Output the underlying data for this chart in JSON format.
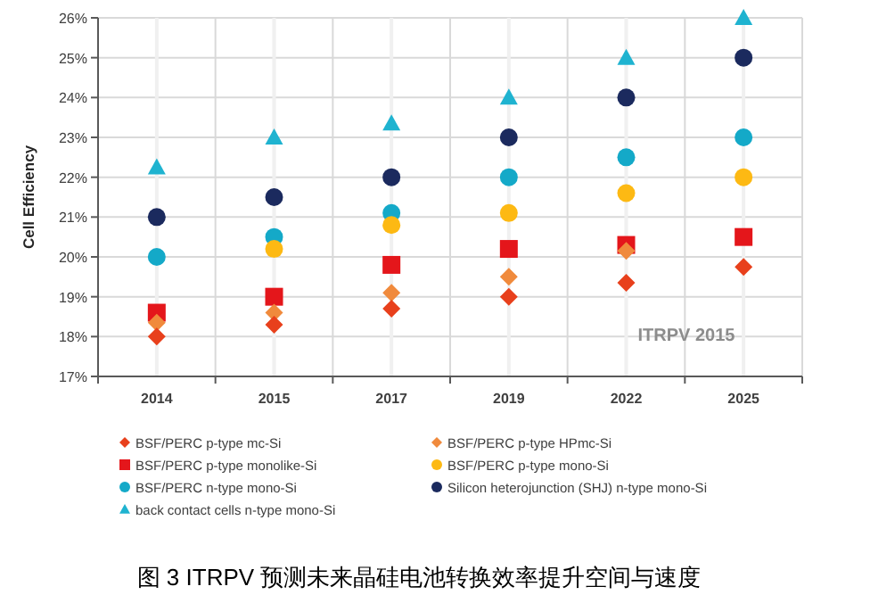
{
  "chart_data": {
    "type": "scatter",
    "ylabel": "Cell Efficiency",
    "categories": [
      "2014",
      "2015",
      "2017",
      "2019",
      "2022",
      "2025"
    ],
    "ylim": [
      17,
      26
    ],
    "yticks": [
      {
        "value": 17,
        "label": "17%"
      },
      {
        "value": 18,
        "label": "18%"
      },
      {
        "value": 19,
        "label": "19%"
      },
      {
        "value": 20,
        "label": "20%"
      },
      {
        "value": 21,
        "label": "21%"
      },
      {
        "value": 22,
        "label": "22%"
      },
      {
        "value": 23,
        "label": "23%"
      },
      {
        "value": 24,
        "label": "24%"
      },
      {
        "value": 25,
        "label": "25%"
      },
      {
        "value": 26,
        "label": "26%"
      }
    ],
    "grid": true,
    "legend": "bottom",
    "series": [
      {
        "name": "BSF/PERC p-type mc-Si",
        "color": "#e8401c",
        "marker": "diamond",
        "values": [
          18.0,
          18.3,
          18.7,
          19.0,
          19.35,
          19.75
        ]
      },
      {
        "name": "BSF/PERC p-type HPmc-Si",
        "color": "#f08a3c",
        "marker": "diamond",
        "values": [
          18.35,
          18.6,
          19.1,
          19.5,
          20.15,
          null
        ]
      },
      {
        "name": "BSF/PERC p-type monolike-Si",
        "color": "#e4161b",
        "marker": "square",
        "values": [
          18.6,
          19.0,
          19.8,
          20.2,
          20.3,
          20.5
        ]
      },
      {
        "name": "BSF/PERC p-type mono-Si",
        "color": "#fdb913",
        "marker": "circle",
        "values": [
          null,
          20.2,
          20.8,
          21.1,
          21.6,
          22.0
        ]
      },
      {
        "name": "BSF/PERC n-type mono-Si",
        "color": "#14a9c8",
        "marker": "circle",
        "values": [
          20.0,
          20.5,
          21.1,
          22.0,
          22.5,
          23.0
        ]
      },
      {
        "name": "Silicon heterojunction (SHJ) n-type mono-Si",
        "color": "#1b2a5e",
        "marker": "circle",
        "values": [
          21.0,
          21.5,
          22.0,
          23.0,
          24.0,
          25.0
        ]
      },
      {
        "name": "back contact cells n-type mono-Si",
        "color": "#1fb3d0",
        "marker": "triangle",
        "values": [
          22.25,
          23.0,
          23.35,
          24.0,
          25.0,
          26.0
        ]
      }
    ],
    "annotations": [
      "ITRPV 2015",
      "图 3 ITRPV 预测未来晶硅电池转换效率提升空间与速度"
    ]
  }
}
